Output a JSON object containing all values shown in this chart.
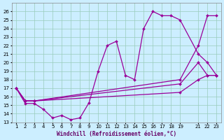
{
  "xlabel": "Windchill (Refroidissement éolien,°C)",
  "bg_color": "#cceeff",
  "line_color": "#990099",
  "grid_color": "#99ccbb",
  "xlim": [
    0.5,
    23.5
  ],
  "ylim": [
    13,
    27
  ],
  "xticks": [
    1,
    2,
    3,
    4,
    5,
    6,
    7,
    8,
    9,
    10,
    11,
    12,
    13,
    14,
    15,
    16,
    17,
    18,
    19,
    21,
    22,
    23
  ],
  "yticks": [
    13,
    14,
    15,
    16,
    17,
    18,
    19,
    20,
    21,
    22,
    23,
    24,
    25,
    26
  ],
  "line1_x": [
    1,
    2,
    3,
    4,
    5,
    6,
    7,
    8,
    9,
    10,
    11,
    12,
    13,
    14,
    15,
    16,
    17,
    18,
    19,
    21,
    22,
    23
  ],
  "line1_y": [
    17,
    15.2,
    15.2,
    14.5,
    13.5,
    13.8,
    13.3,
    13.5,
    15.3,
    19.0,
    22.0,
    22.5,
    18.5,
    18.0,
    24.0,
    26.0,
    25.5,
    25.5,
    25.0,
    21.0,
    20.0,
    18.5
  ],
  "line2_x": [
    1,
    2,
    3,
    19,
    21,
    22,
    23
  ],
  "line2_y": [
    17,
    15.5,
    15.5,
    18.0,
    22.0,
    25.5,
    25.5
  ],
  "line3_x": [
    1,
    2,
    3,
    19,
    21,
    22,
    23
  ],
  "line3_y": [
    17,
    15.5,
    15.5,
    16.5,
    18.0,
    18.5,
    18.5
  ],
  "line4_x": [
    1,
    2,
    3,
    19,
    21,
    22,
    23
  ],
  "line4_y": [
    17,
    15.5,
    15.5,
    17.5,
    20.0,
    18.5,
    18.5
  ]
}
